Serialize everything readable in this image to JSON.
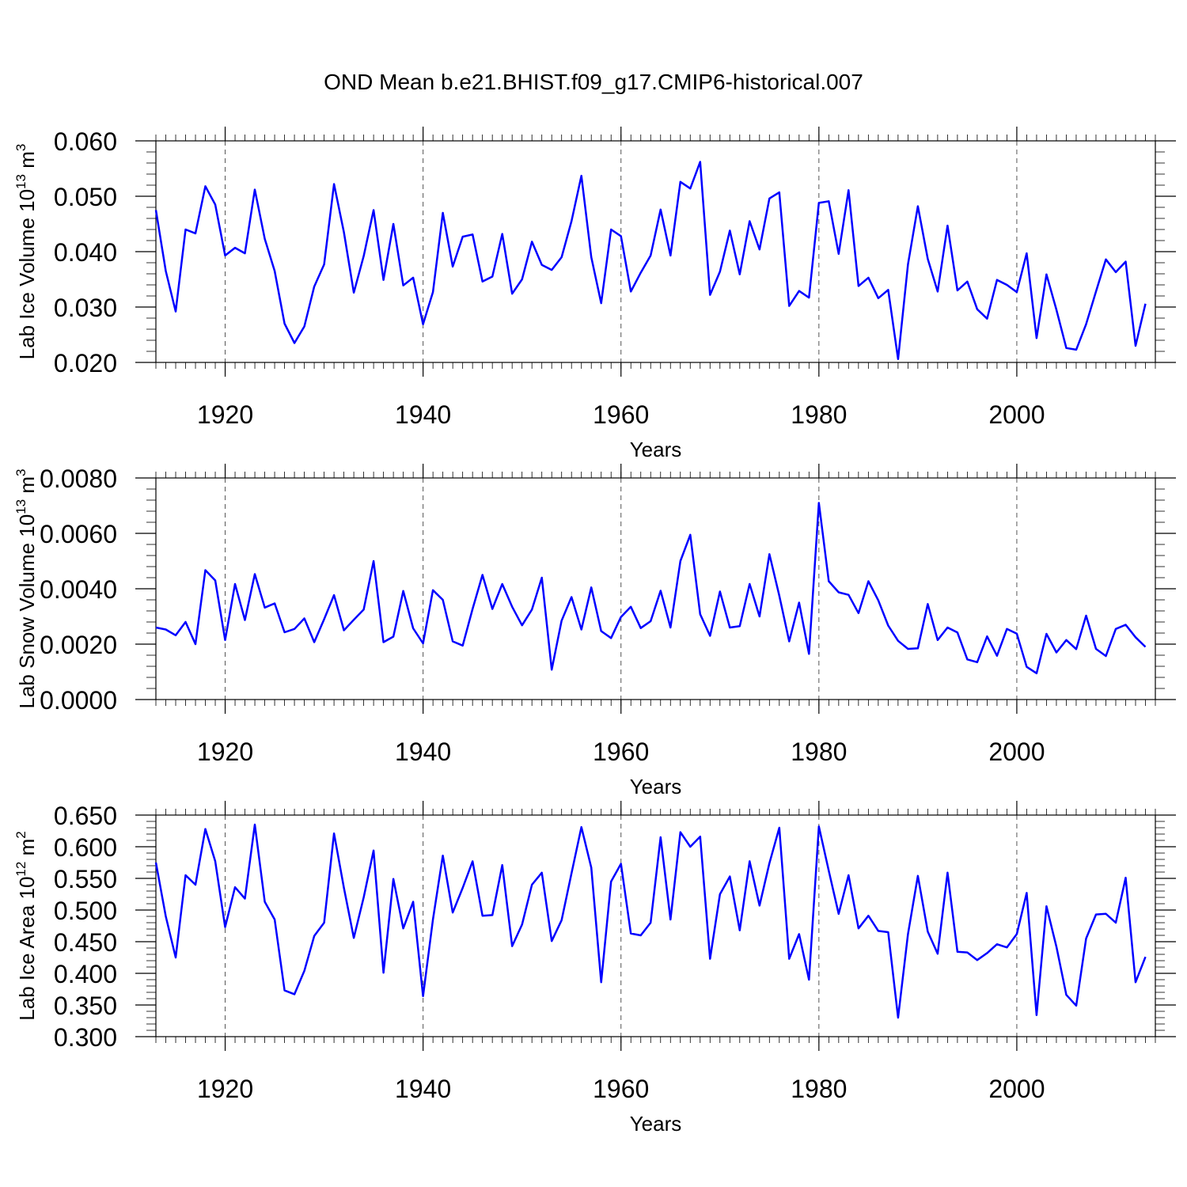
{
  "title": "OND Mean b.e21.BHIST.f09_g17.CMIP6-historical.007",
  "colors": {
    "line": "#0000ff",
    "axis": "#000000",
    "grid": "#555555"
  },
  "chart_data": [
    {
      "type": "line",
      "ylabel": {
        "base": "Lab Ice Volume 10",
        "exp1": "13",
        "unit": " m",
        "exp2": "3"
      },
      "xlabel": "Years",
      "xlim": [
        1913,
        2014
      ],
      "ylim": [
        0.02,
        0.06
      ],
      "yticks": [
        0.02,
        0.03,
        0.04,
        0.05,
        0.06
      ],
      "yticklabels": [
        "0.020",
        "0.030",
        "0.040",
        "0.050",
        "0.060"
      ],
      "ymin_step": 0.002,
      "xticks": [
        1920,
        1940,
        1960,
        1980,
        2000
      ],
      "xticklabels": [
        "1920",
        "1940",
        "1960",
        "1980",
        "2000"
      ],
      "grid": "vertical dashed at x ticks",
      "series": [
        {
          "name": "Lab Ice Volume",
          "x_start": 1913,
          "values": [
            0.0475,
            0.0365,
            0.0292,
            0.044,
            0.0433,
            0.0518,
            0.0485,
            0.0393,
            0.0407,
            0.0397,
            0.0512,
            0.0423,
            0.0365,
            0.027,
            0.0235,
            0.0265,
            0.0337,
            0.0377,
            0.0522,
            0.0435,
            0.0326,
            0.0392,
            0.0475,
            0.0349,
            0.045,
            0.0339,
            0.0353,
            0.0269,
            0.0327,
            0.047,
            0.0373,
            0.0427,
            0.0431,
            0.0346,
            0.0355,
            0.0432,
            0.0324,
            0.035,
            0.0418,
            0.0376,
            0.0367,
            0.039,
            0.0455,
            0.0537,
            0.039,
            0.0307,
            0.044,
            0.0428,
            0.0328,
            0.0362,
            0.0393,
            0.0476,
            0.0393,
            0.0526,
            0.0514,
            0.0562,
            0.0322,
            0.0364,
            0.0438,
            0.0359,
            0.0455,
            0.0404,
            0.0496,
            0.0507,
            0.0302,
            0.0329,
            0.0317,
            0.0488,
            0.0491,
            0.0396,
            0.0511,
            0.0338,
            0.0353,
            0.0316,
            0.0331,
            0.0206,
            0.0377,
            0.0482,
            0.0387,
            0.0328,
            0.0447,
            0.033,
            0.0346,
            0.0296,
            0.0279,
            0.0349,
            0.034,
            0.0327,
            0.0397,
            0.0244,
            0.0359,
            0.0295,
            0.0226,
            0.0223,
            0.0269,
            0.0328,
            0.0386,
            0.0363,
            0.0382,
            0.023,
            0.0306
          ]
        }
      ]
    },
    {
      "type": "line",
      "ylabel": {
        "base": "Lab Snow Volume 10",
        "exp1": "13",
        "unit": " m",
        "exp2": "3"
      },
      "xlabel": "Years",
      "xlim": [
        1913,
        2014
      ],
      "ylim": [
        0.0,
        0.008
      ],
      "yticks": [
        0.0,
        0.002,
        0.004,
        0.006,
        0.008
      ],
      "yticklabels": [
        "0.0000",
        "0.0020",
        "0.0040",
        "0.0060",
        "0.0080"
      ],
      "ymin_step": 0.0004,
      "xticks": [
        1920,
        1940,
        1960,
        1980,
        2000
      ],
      "xticklabels": [
        "1920",
        "1940",
        "1960",
        "1980",
        "2000"
      ],
      "grid": "vertical dashed at x ticks",
      "series": [
        {
          "name": "Lab Snow Volume",
          "x_start": 1913,
          "values": [
            0.0026,
            0.00253,
            0.00232,
            0.0028,
            0.002,
            0.00467,
            0.0043,
            0.00215,
            0.00417,
            0.00287,
            0.00453,
            0.00332,
            0.00347,
            0.00243,
            0.00255,
            0.00293,
            0.00207,
            0.0029,
            0.00377,
            0.0025,
            0.00288,
            0.00325,
            0.005,
            0.00207,
            0.00227,
            0.00392,
            0.00257,
            0.00203,
            0.00395,
            0.0036,
            0.0021,
            0.00195,
            0.00327,
            0.0045,
            0.00327,
            0.00417,
            0.00335,
            0.00268,
            0.00325,
            0.0044,
            0.00108,
            0.00285,
            0.0037,
            0.00253,
            0.00405,
            0.00247,
            0.00222,
            0.00298,
            0.00335,
            0.00258,
            0.00283,
            0.00393,
            0.0026,
            0.005,
            0.00595,
            0.00308,
            0.0023,
            0.0039,
            0.0026,
            0.00265,
            0.00417,
            0.003,
            0.00525,
            0.00375,
            0.0021,
            0.0035,
            0.00165,
            0.0071,
            0.00427,
            0.00387,
            0.00378,
            0.00312,
            0.00427,
            0.00358,
            0.00267,
            0.00212,
            0.00183,
            0.00185,
            0.00345,
            0.00215,
            0.0026,
            0.00242,
            0.00145,
            0.00135,
            0.00228,
            0.00158,
            0.00255,
            0.00238,
            0.00118,
            0.00095,
            0.00237,
            0.0017,
            0.00215,
            0.00182,
            0.00303,
            0.00183,
            0.00157,
            0.00255,
            0.0027,
            0.00225,
            0.0019
          ]
        }
      ]
    },
    {
      "type": "line",
      "ylabel": {
        "base": "Lab Ice Area 10",
        "exp1": "12",
        "unit": " m",
        "exp2": "2"
      },
      "xlabel": "Years",
      "xlim": [
        1913,
        2014
      ],
      "ylim": [
        0.3,
        0.65
      ],
      "yticks": [
        0.3,
        0.35,
        0.4,
        0.45,
        0.5,
        0.55,
        0.6,
        0.65
      ],
      "yticklabels": [
        "0.300",
        "0.350",
        "0.400",
        "0.450",
        "0.500",
        "0.550",
        "0.600",
        "0.650"
      ],
      "ymin_step": 0.01,
      "xticks": [
        1920,
        1940,
        1960,
        1980,
        2000
      ],
      "xticklabels": [
        "1920",
        "1940",
        "1960",
        "1980",
        "2000"
      ],
      "grid": "vertical dashed at x ticks",
      "series": [
        {
          "name": "Lab Ice Area",
          "x_start": 1913,
          "values": [
            0.575,
            0.49,
            0.425,
            0.555,
            0.54,
            0.628,
            0.577,
            0.473,
            0.536,
            0.518,
            0.635,
            0.513,
            0.485,
            0.373,
            0.367,
            0.404,
            0.459,
            0.48,
            0.621,
            0.535,
            0.456,
            0.52,
            0.594,
            0.401,
            0.549,
            0.471,
            0.513,
            0.364,
            0.485,
            0.586,
            0.496,
            0.535,
            0.577,
            0.491,
            0.492,
            0.571,
            0.443,
            0.477,
            0.54,
            0.559,
            0.451,
            0.484,
            0.558,
            0.631,
            0.567,
            0.386,
            0.545,
            0.573,
            0.463,
            0.46,
            0.48,
            0.615,
            0.485,
            0.623,
            0.6,
            0.616,
            0.423,
            0.525,
            0.553,
            0.468,
            0.577,
            0.507,
            0.574,
            0.63,
            0.423,
            0.462,
            0.39,
            0.632,
            0.562,
            0.494,
            0.555,
            0.471,
            0.491,
            0.467,
            0.465,
            0.33,
            0.462,
            0.554,
            0.466,
            0.431,
            0.559,
            0.434,
            0.433,
            0.421,
            0.432,
            0.446,
            0.441,
            0.462,
            0.527,
            0.334,
            0.506,
            0.442,
            0.366,
            0.349,
            0.455,
            0.493,
            0.494,
            0.48,
            0.551,
            0.386,
            0.426
          ]
        }
      ]
    }
  ]
}
